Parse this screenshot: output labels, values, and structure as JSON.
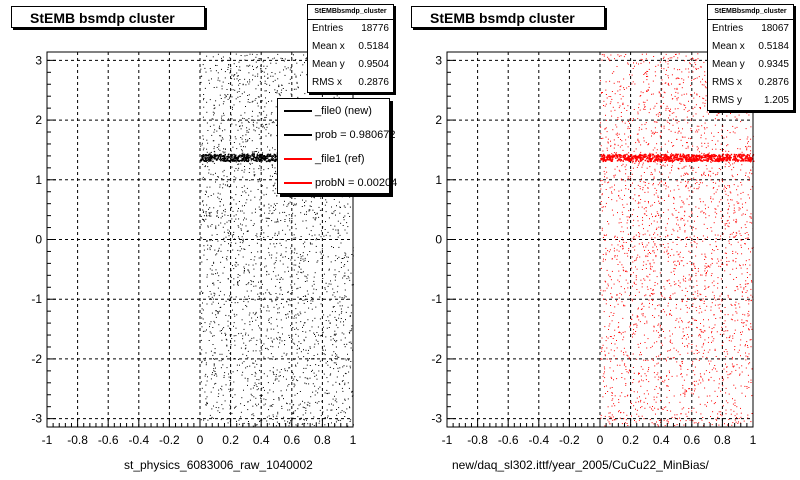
{
  "chart_data": [
    {
      "type": "scatter",
      "title": "StEMB bsmdp cluster",
      "xlabel": "st_physics_6083006_raw_1040002",
      "ylabel": "",
      "xlim": [
        -1,
        1
      ],
      "ylim": [
        -3.14,
        3.14
      ],
      "x_ticks": [
        "-1",
        "-0.8",
        "-0.6",
        "-0.4",
        "-0.2",
        "0",
        "0.2",
        "0.4",
        "0.6",
        "0.8",
        "1"
      ],
      "y_ticks": [
        "3",
        "2",
        "1",
        "0",
        "-1",
        "-2",
        "-3"
      ],
      "grid": true,
      "marker_color": "#000000",
      "band_y": 1.38,
      "stats": {
        "name": "StEMBbsmdp_cluster",
        "rows": [
          {
            "label": "Entries",
            "value": "18776"
          },
          {
            "label": "Mean x",
            "value": "0.5184"
          },
          {
            "label": "Mean y",
            "value": "0.9504"
          },
          {
            "label": "RMS x",
            "value": "0.2876"
          }
        ]
      },
      "legend": [
        {
          "label": "_file0 (new)",
          "color": "#000000"
        },
        {
          "label": "prob = 0.980672",
          "color": "#000000"
        },
        {
          "label": "_file1 (ref)",
          "color": "#ff0000"
        },
        {
          "label": "probN = 0.00204",
          "color": "#ff0000"
        }
      ]
    },
    {
      "type": "scatter",
      "title": "StEMB bsmdp cluster",
      "xlabel": "new/daq_sl302.ittf/year_2005/CuCu22_MinBias/",
      "ylabel": "",
      "xlim": [
        -1,
        1
      ],
      "ylim": [
        -3.14,
        3.14
      ],
      "x_ticks": [
        "-1",
        "-0.8",
        "-0.6",
        "-0.4",
        "-0.2",
        "0",
        "0.2",
        "0.4",
        "0.6",
        "0.8",
        "1"
      ],
      "y_ticks": [
        "3",
        "2",
        "1",
        "0",
        "-1",
        "-2",
        "-3"
      ],
      "grid": true,
      "marker_color": "#ff0000",
      "band_y": 1.38,
      "stats": {
        "name": "StEMBbsmdp_cluster",
        "rows": [
          {
            "label": "Entries",
            "value": "18067"
          },
          {
            "label": "Mean x",
            "value": "0.5184"
          },
          {
            "label": "Mean y",
            "value": "0.9345"
          },
          {
            "label": "RMS x",
            "value": "0.2876"
          },
          {
            "label": "RMS y",
            "value": "1.205"
          }
        ]
      }
    }
  ]
}
